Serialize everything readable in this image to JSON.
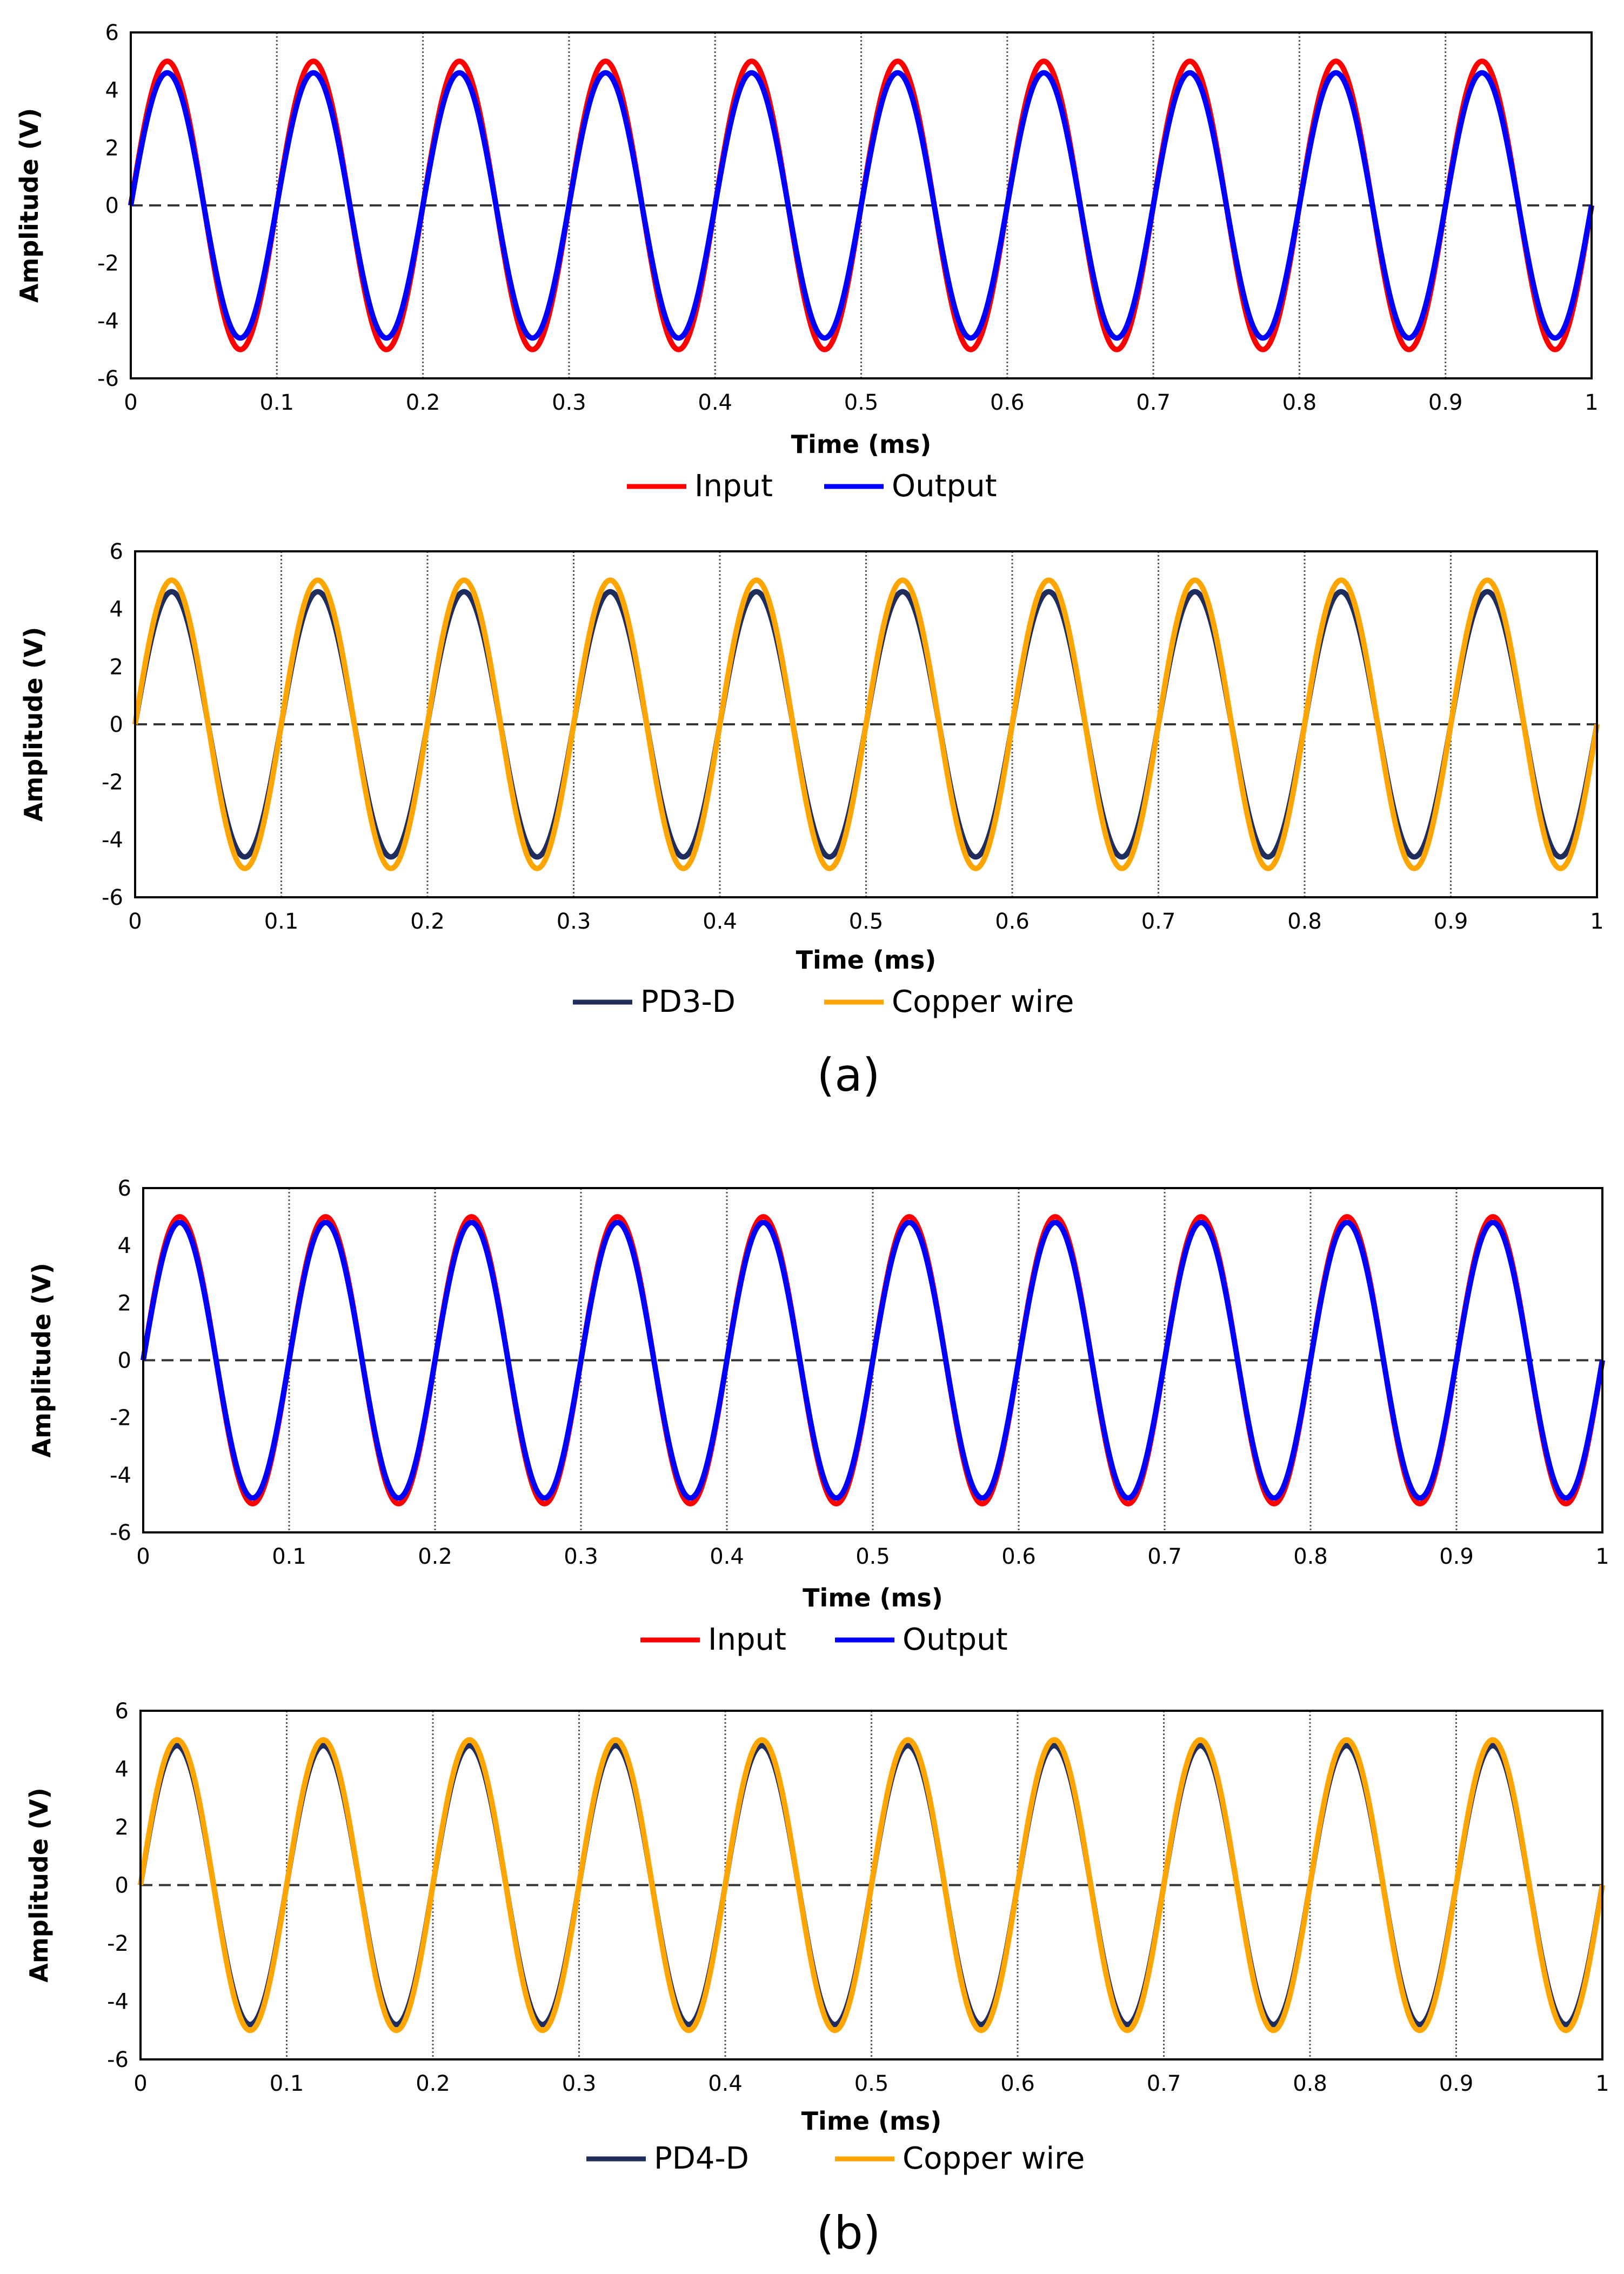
{
  "figure": {
    "panel_labels": [
      "(a)",
      "(b)"
    ]
  },
  "chart_data": [
    {
      "type": "line",
      "panel": "(a)",
      "xlabel": "Time (ms)",
      "ylabel": "Amplitude (V)",
      "xlim": [
        0,
        1
      ],
      "ylim": [
        -6,
        6
      ],
      "xticks": [
        0,
        0.1,
        0.2,
        0.3,
        0.4,
        0.5,
        0.6,
        0.7,
        0.8,
        0.9,
        1
      ],
      "xtick_labels": [
        "0",
        "0.1",
        "0.2",
        "0.3",
        "0.4",
        "0.5",
        "0.6",
        "0.7",
        "0.8",
        "0.9",
        "1"
      ],
      "yticks": [
        -6,
        -4,
        -2,
        0,
        2,
        4,
        6
      ],
      "ytick_labels": [
        "-6",
        "-4",
        "-2",
        "0",
        "2",
        "4",
        "6"
      ],
      "frequency_khz": 10,
      "vertical_gridlines": true,
      "zero_line": "dashed",
      "legend_position": "bottom",
      "series": [
        {
          "name": "Input",
          "amplitude": 5.0,
          "color": "#ff0000"
        },
        {
          "name": "Output",
          "amplitude": 4.6,
          "color": "#0000ff"
        }
      ]
    },
    {
      "type": "line",
      "panel": "(a)",
      "xlabel": "Time (ms)",
      "ylabel": "Amplitude (V)",
      "xlim": [
        0,
        1
      ],
      "ylim": [
        -6,
        6
      ],
      "xticks": [
        0,
        0.1,
        0.2,
        0.3,
        0.4,
        0.5,
        0.6,
        0.7,
        0.8,
        0.9,
        1
      ],
      "xtick_labels": [
        "0",
        "0.1",
        "0.2",
        "0.3",
        "0.4",
        "0.5",
        "0.6",
        "0.7",
        "0.8",
        "0.9",
        "1"
      ],
      "yticks": [
        -6,
        -4,
        -2,
        0,
        2,
        4,
        6
      ],
      "ytick_labels": [
        "-6",
        "-4",
        "-2",
        "0",
        "2",
        "4",
        "6"
      ],
      "frequency_khz": 10,
      "vertical_gridlines": true,
      "zero_line": "dashed",
      "legend_position": "bottom",
      "series": [
        {
          "name": "PD3-D",
          "amplitude": 4.6,
          "color": "#1f2d5c"
        },
        {
          "name": "Copper wire",
          "amplitude": 5.0,
          "color": "#ffa500"
        }
      ]
    },
    {
      "type": "line",
      "panel": "(b)",
      "xlabel": "Time (ms)",
      "ylabel": "Amplitude (V)",
      "xlim": [
        0,
        1
      ],
      "ylim": [
        -6,
        6
      ],
      "xticks": [
        0,
        0.1,
        0.2,
        0.3,
        0.4,
        0.5,
        0.6,
        0.7,
        0.8,
        0.9,
        1
      ],
      "xtick_labels": [
        "0",
        "0.1",
        "0.2",
        "0.3",
        "0.4",
        "0.5",
        "0.6",
        "0.7",
        "0.8",
        "0.9",
        "1"
      ],
      "yticks": [
        -6,
        -4,
        -2,
        0,
        2,
        4,
        6
      ],
      "ytick_labels": [
        "-6",
        "-4",
        "-2",
        "0",
        "2",
        "4",
        "6"
      ],
      "frequency_khz": 10,
      "vertical_gridlines": true,
      "zero_line": "dashed",
      "legend_position": "bottom",
      "series": [
        {
          "name": "Input",
          "amplitude": 5.0,
          "color": "#ff0000"
        },
        {
          "name": "Output",
          "amplitude": 4.8,
          "color": "#0000ff"
        }
      ]
    },
    {
      "type": "line",
      "panel": "(b)",
      "xlabel": "Time (ms)",
      "ylabel": "Amplitude (V)",
      "xlim": [
        0,
        1
      ],
      "ylim": [
        -6,
        6
      ],
      "xticks": [
        0,
        0.1,
        0.2,
        0.3,
        0.4,
        0.5,
        0.6,
        0.7,
        0.8,
        0.9,
        1
      ],
      "xtick_labels": [
        "0",
        "0.1",
        "0.2",
        "0.3",
        "0.4",
        "0.5",
        "0.6",
        "0.7",
        "0.8",
        "0.9",
        "1"
      ],
      "yticks": [
        -6,
        -4,
        -2,
        0,
        2,
        4,
        6
      ],
      "ytick_labels": [
        "-6",
        "-4",
        "-2",
        "0",
        "2",
        "4",
        "6"
      ],
      "frequency_khz": 10,
      "vertical_gridlines": true,
      "zero_line": "dashed",
      "legend_position": "bottom",
      "series": [
        {
          "name": "PD4-D",
          "amplitude": 4.8,
          "color": "#1f2d5c"
        },
        {
          "name": "Copper wire",
          "amplitude": 5.0,
          "color": "#ffa500"
        }
      ]
    }
  ]
}
